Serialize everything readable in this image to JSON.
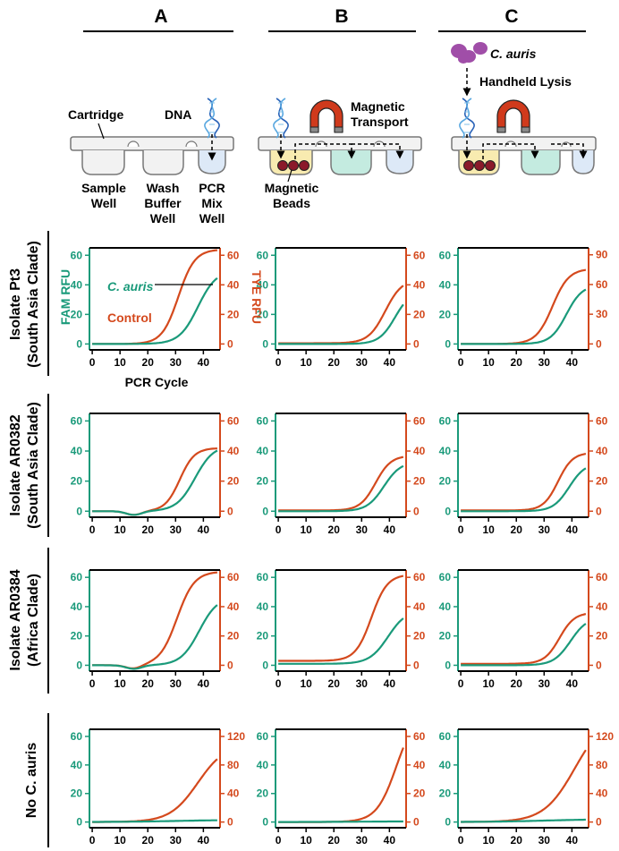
{
  "colors": {
    "fam": "#1a9a7a",
    "tye": "#d4491d",
    "well": "#f2f2f2",
    "yellow_fill": "#f8ebb0",
    "green_fill": "#c4ebe0",
    "blue_fill": "#dde9f7",
    "bead": "#8b1a2a",
    "magnet_red": "#d03a1c",
    "magnet_tip": "#8a8a8a",
    "cauris_cell": "#a04ea8"
  },
  "columns": [
    "A",
    "B",
    "C"
  ],
  "diagram": {
    "a": {
      "cartridge": "Cartridge",
      "dna": "DNA",
      "sample_well": [
        "Sample",
        "Well"
      ],
      "wash_well": [
        "Wash",
        "Buffer",
        "Well"
      ],
      "pcr_well": [
        "PCR",
        "Mix",
        "Well"
      ]
    },
    "b": {
      "magnetic_transport": [
        "Magnetic",
        "Transport"
      ],
      "magnetic_beads": [
        "Magnetic",
        "Beads"
      ]
    },
    "c": {
      "organism": "C. auris",
      "handheld_lysis": "Handheld Lysis"
    }
  },
  "row_labels": [
    [
      "Isolate Pt3",
      "(South Asia Clade)"
    ],
    [
      "Isolate AR0382",
      "(South Asia Clade)"
    ],
    [
      "Isolate AR0384",
      "(Africa Clade)"
    ],
    [
      "No C. auris"
    ]
  ],
  "chart_data": {
    "type": "line",
    "x_ticks": [
      0,
      10,
      20,
      30,
      40
    ],
    "xlim": [
      -1,
      46
    ],
    "xlabel": "PCR Cycle",
    "ylabel_left": "FAM RFU",
    "ylabel_right": "TYE RFU",
    "legend": {
      "fam_label": "C. auris",
      "tye_label": "Control"
    },
    "panels": [
      {
        "row": 0,
        "col": 0,
        "left_ylim": [
          -4,
          65
        ],
        "left_ticks": [
          0,
          20,
          40,
          60
        ],
        "right_ylim": [
          -4,
          65
        ],
        "right_ticks": [
          0,
          20,
          40,
          60
        ],
        "fam": {
          "base": 0,
          "top": 50,
          "mid": 38,
          "k": 0.3
        },
        "tye": {
          "base": 0,
          "top": 64,
          "mid": 31,
          "k": 0.34
        }
      },
      {
        "row": 0,
        "col": 1,
        "left_ylim": [
          -4,
          65
        ],
        "left_ticks": [
          0,
          20,
          40,
          60
        ],
        "right_ylim": [
          -4,
          65
        ],
        "right_ticks": [
          0,
          20,
          40,
          60
        ],
        "fam": {
          "base": 0,
          "top": 36,
          "mid": 42,
          "k": 0.35
        },
        "tye": {
          "base": 0.5,
          "top": 44,
          "mid": 38.5,
          "k": 0.33
        }
      },
      {
        "row": 0,
        "col": 2,
        "left_ylim": [
          -4,
          65
        ],
        "left_ticks": [
          0,
          20,
          40,
          60
        ],
        "right_ylim": [
          -6,
          97
        ],
        "right_ticks": [
          0,
          30,
          60,
          90
        ],
        "fam": {
          "base": 0,
          "top": 40,
          "mid": 38,
          "k": 0.35
        },
        "tye": {
          "base": 0,
          "top": 76,
          "mid": 33,
          "k": 0.34
        }
      },
      {
        "row": 1,
        "col": 0,
        "left_ylim": [
          -4,
          65
        ],
        "left_ticks": [
          0,
          20,
          40,
          60
        ],
        "right_ylim": [
          -4,
          65
        ],
        "right_ticks": [
          0,
          20,
          40,
          60
        ],
        "fam": {
          "base": 0,
          "top": 44,
          "mid": 37,
          "k": 0.3
        },
        "tye": {
          "base": 0,
          "top": 42,
          "mid": 31.5,
          "k": 0.38
        },
        "dip": true
      },
      {
        "row": 1,
        "col": 1,
        "left_ylim": [
          -4,
          65
        ],
        "left_ticks": [
          0,
          20,
          40,
          60
        ],
        "right_ylim": [
          -4,
          65
        ],
        "right_ticks": [
          0,
          20,
          40,
          60
        ],
        "fam": {
          "base": 0,
          "top": 33,
          "mid": 38,
          "k": 0.33
        },
        "tye": {
          "base": 0.5,
          "top": 37,
          "mid": 35,
          "k": 0.36
        }
      },
      {
        "row": 1,
        "col": 2,
        "left_ylim": [
          -4,
          65
        ],
        "left_ticks": [
          0,
          20,
          40,
          60
        ],
        "right_ylim": [
          -4,
          65
        ],
        "right_ticks": [
          0,
          20,
          40,
          60
        ],
        "fam": {
          "base": 0,
          "top": 32,
          "mid": 39,
          "k": 0.35
        },
        "tye": {
          "base": 0.5,
          "top": 39,
          "mid": 35,
          "k": 0.38
        }
      },
      {
        "row": 2,
        "col": 0,
        "left_ylim": [
          -4,
          65
        ],
        "left_ticks": [
          0,
          20,
          40,
          60
        ],
        "right_ylim": [
          -4,
          65
        ],
        "right_ticks": [
          0,
          20,
          40,
          60
        ],
        "fam": {
          "base": 0,
          "top": 47,
          "mid": 38.5,
          "k": 0.3
        },
        "tye": {
          "base": 0,
          "top": 64,
          "mid": 30.5,
          "k": 0.32
        },
        "dip": true
      },
      {
        "row": 2,
        "col": 1,
        "left_ylim": [
          -4,
          65
        ],
        "left_ticks": [
          0,
          20,
          40,
          60
        ],
        "right_ylim": [
          -4,
          65
        ],
        "right_ticks": [
          0,
          20,
          40,
          60
        ],
        "fam": {
          "base": 1,
          "top": 38,
          "mid": 39.5,
          "k": 0.3
        },
        "tye": {
          "base": 3,
          "top": 62,
          "mid": 33.5,
          "k": 0.35
        }
      },
      {
        "row": 2,
        "col": 2,
        "left_ylim": [
          -4,
          65
        ],
        "left_ticks": [
          0,
          20,
          40,
          60
        ],
        "right_ylim": [
          -4,
          65
        ],
        "right_ticks": [
          0,
          20,
          40,
          60
        ],
        "fam": {
          "base": 0,
          "top": 33,
          "mid": 39.5,
          "k": 0.33
        },
        "tye": {
          "base": 1,
          "top": 36,
          "mid": 35.5,
          "k": 0.37
        }
      },
      {
        "row": 3,
        "col": 0,
        "left_ylim": [
          -4,
          65
        ],
        "left_ticks": [
          0,
          20,
          40,
          60
        ],
        "right_ylim": [
          -8,
          130
        ],
        "right_ticks": [
          0,
          40,
          80,
          120
        ],
        "fam": {
          "base": 0,
          "top": 1.5,
          "mid": 30,
          "k": 0.1
        },
        "tye": {
          "base": 0,
          "top": 110,
          "mid": 38,
          "k": 0.2
        }
      },
      {
        "row": 3,
        "col": 1,
        "left_ylim": [
          -4,
          65
        ],
        "left_ticks": [
          0,
          20,
          40,
          60
        ],
        "right_ylim": [
          -4,
          65
        ],
        "right_ticks": [
          0,
          20,
          40,
          60
        ],
        "fam": {
          "base": 0,
          "top": 0.5,
          "mid": 30,
          "k": 0.1
        },
        "tye": {
          "base": 0,
          "top": 78,
          "mid": 42.5,
          "k": 0.28
        }
      },
      {
        "row": 3,
        "col": 2,
        "left_ylim": [
          -4,
          65
        ],
        "left_ticks": [
          0,
          20,
          40,
          60
        ],
        "right_ylim": [
          -8,
          130
        ],
        "right_ticks": [
          0,
          40,
          80,
          120
        ],
        "fam": {
          "base": 0,
          "top": 2,
          "mid": 30,
          "k": 0.1
        },
        "tye": {
          "base": 0,
          "top": 150,
          "mid": 41,
          "k": 0.18
        }
      }
    ]
  }
}
